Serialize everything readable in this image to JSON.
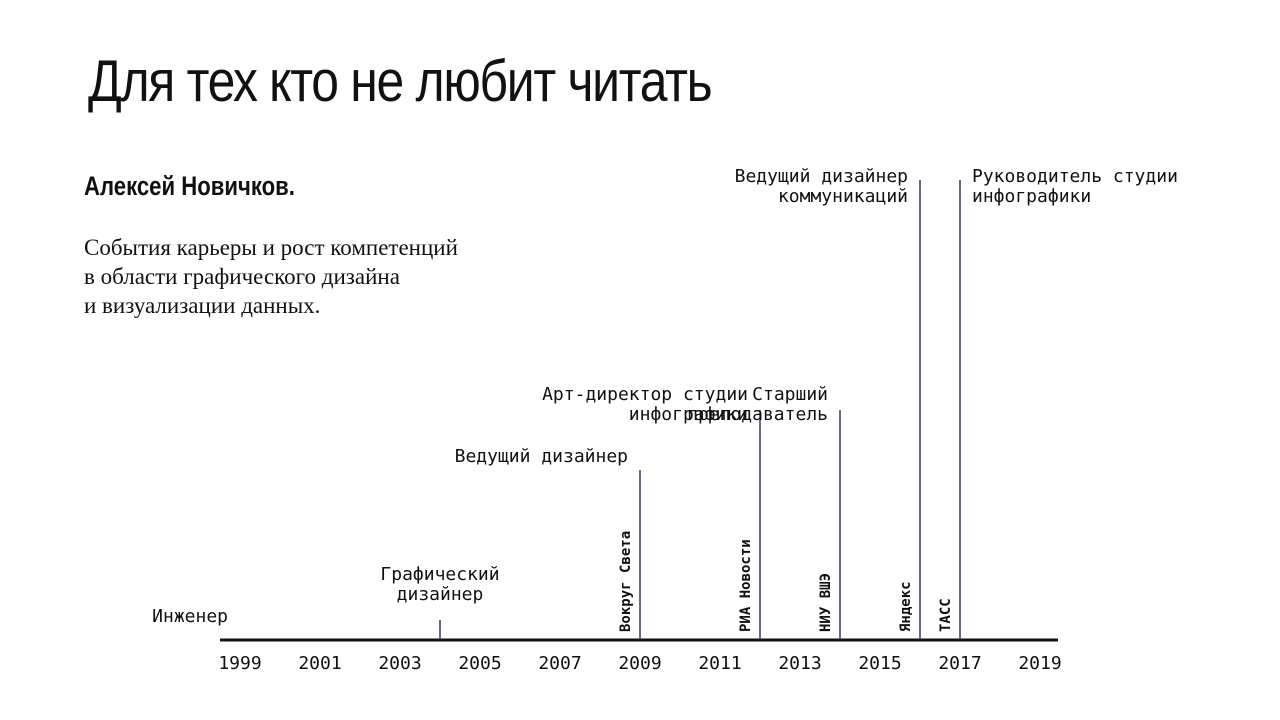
{
  "slide": {
    "title": "Для тех кто не любит читать",
    "author": "Алексей Новичков.",
    "description_lines": [
      "События карьеры и рост компетенций",
      "в области графического дизайна",
      "и визуализации данных."
    ]
  },
  "chart_data": {
    "type": "timeline",
    "axis": {
      "ticks": [
        "1999",
        "2001",
        "2003",
        "2005",
        "2007",
        "2009",
        "2011",
        "2013",
        "2015",
        "2017",
        "2019"
      ]
    },
    "events": [
      {
        "year": 1999,
        "level": 0,
        "role": [
          "Инженер"
        ],
        "organization": ""
      },
      {
        "year": 2004,
        "level": 0.1,
        "role": [
          "Графический",
          "дизайнер"
        ],
        "organization": ""
      },
      {
        "year": 2009,
        "level": 0.85,
        "role": [
          "Ведущий дизайнер"
        ],
        "organization": "Вокруг Света"
      },
      {
        "year": 2012,
        "level": 1.15,
        "role": [
          "Арт-директор студии",
          "инфографики"
        ],
        "organization": "РИА Новости"
      },
      {
        "year": 2014,
        "level": 1.15,
        "role": [
          "Старший",
          "преподаватель"
        ],
        "organization": "НИУ ВШЭ"
      },
      {
        "year": 2016,
        "level": 2.3,
        "role": [
          "Ведущий дизайнер",
          "коммуникаций"
        ],
        "organization": "Яндекс"
      },
      {
        "year": 2017,
        "level": 2.3,
        "role": [
          "Руководитель студии",
          "инфографики"
        ],
        "organization": "ТАСС"
      }
    ]
  }
}
